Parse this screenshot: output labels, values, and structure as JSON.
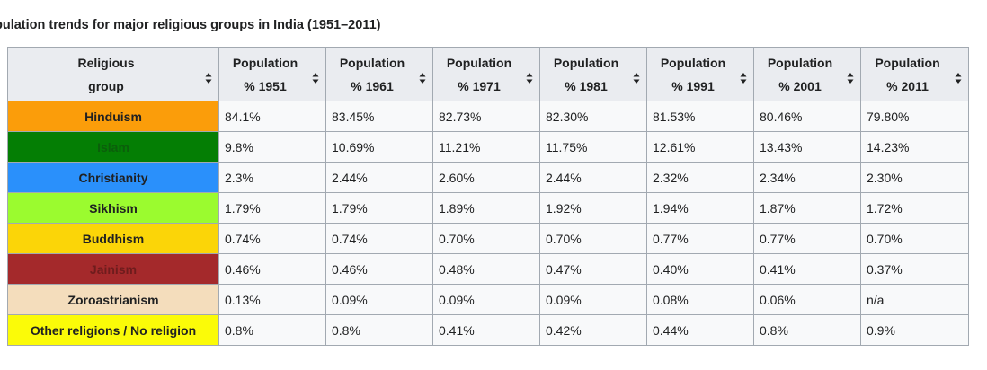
{
  "caption": "pulation trends for major religious groups in India (1951–2011)",
  "table": {
    "headers": [
      [
        "Religious",
        "group"
      ],
      [
        "Population",
        "% 1951"
      ],
      [
        "Population",
        "% 1961"
      ],
      [
        "Population",
        "% 1971"
      ],
      [
        "Population",
        "% 1981"
      ],
      [
        "Population",
        "% 1991"
      ],
      [
        "Population",
        "% 2001"
      ],
      [
        "Population",
        "% 2011"
      ]
    ],
    "rows": [
      {
        "group": "Hinduism",
        "bg": "#fb9d0a",
        "fg": "#202122",
        "values": [
          "84.1%",
          "83.45%",
          "82.73%",
          "82.30%",
          "81.53%",
          "80.46%",
          "79.80%"
        ]
      },
      {
        "group": "Islam",
        "bg": "#047e04",
        "fg": "#0b5e0b",
        "values": [
          "9.8%",
          "10.69%",
          "11.21%",
          "11.75%",
          "12.61%",
          "13.43%",
          "14.23%"
        ]
      },
      {
        "group": "Christianity",
        "bg": "#2a90fb",
        "fg": "#202122",
        "values": [
          "2.3%",
          "2.44%",
          "2.60%",
          "2.44%",
          "2.32%",
          "2.34%",
          "2.30%"
        ]
      },
      {
        "group": "Sikhism",
        "bg": "#9bfb2f",
        "fg": "#202122",
        "values": [
          "1.79%",
          "1.79%",
          "1.89%",
          "1.92%",
          "1.94%",
          "1.87%",
          "1.72%"
        ]
      },
      {
        "group": "Buddhism",
        "bg": "#fbd508",
        "fg": "#202122",
        "values": [
          "0.74%",
          "0.74%",
          "0.70%",
          "0.70%",
          "0.77%",
          "0.77%",
          "0.70%"
        ]
      },
      {
        "group": "Jainism",
        "bg": "#a4292b",
        "fg": "#6e1c1d",
        "values": [
          "0.46%",
          "0.46%",
          "0.48%",
          "0.47%",
          "0.40%",
          "0.41%",
          "0.37%"
        ]
      },
      {
        "group": "Zoroastrianism",
        "bg": "#f4ddbc",
        "fg": "#202122",
        "values": [
          "0.13%",
          "0.09%",
          "0.09%",
          "0.09%",
          "0.08%",
          "0.06%",
          "n/a"
        ]
      },
      {
        "group": "Other religions / No religion",
        "bg": "#fbfb08",
        "fg": "#202122",
        "values": [
          "0.8%",
          "0.8%",
          "0.41%",
          "0.42%",
          "0.44%",
          "0.8%",
          "0.9%"
        ]
      }
    ]
  },
  "icons": {
    "sort": "sort-toggle-icon"
  }
}
